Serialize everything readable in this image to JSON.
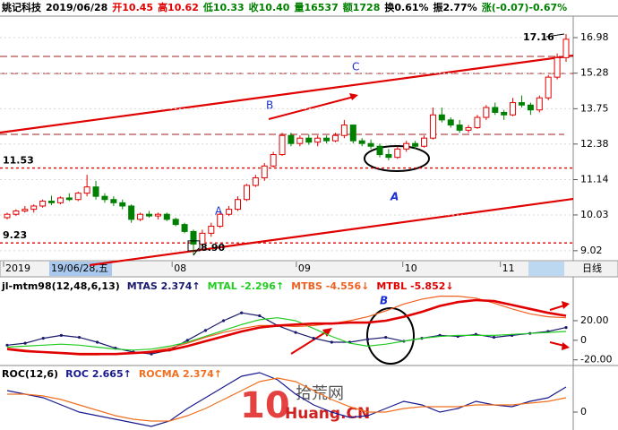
{
  "chart_data": [
    {
      "type": "candlestick",
      "header": {
        "name": "姚记科技",
        "date": "2019/06/28",
        "fields": [
          {
            "text": "开10.45",
            "color": "#e00000"
          },
          {
            "text": "高10.62",
            "color": "#e00000"
          },
          {
            "text": "低10.33",
            "color": "#008000"
          },
          {
            "text": "收10.40",
            "color": "#008000"
          },
          {
            "text": "量16537",
            "color": "#008000"
          },
          {
            "text": "额1728",
            "color": "#008000"
          },
          {
            "text": "换0.61%",
            "color": "#000000"
          },
          {
            "text": "振2.77%",
            "color": "#000000"
          },
          {
            "text": "涨(-0.07)-0.67%",
            "color": "#008000"
          }
        ]
      },
      "categories": [
        "2019",
        null,
        null,
        null,
        null,
        null,
        null,
        null,
        null,
        null,
        null,
        null,
        null,
        null,
        null,
        null,
        null,
        null,
        null,
        "08",
        null,
        null,
        null,
        null,
        null,
        null,
        null,
        null,
        null,
        null,
        null,
        null,
        null,
        "09",
        null,
        null,
        null,
        null,
        null,
        null,
        null,
        null,
        null,
        null,
        null,
        "10",
        null,
        null,
        null,
        null,
        null,
        null,
        null,
        null,
        null,
        null,
        "11",
        null,
        null,
        null,
        null,
        null,
        null,
        null
      ],
      "cursor_label": "19/06/28,五",
      "period": "日线",
      "ohlc": [
        [
          9.95,
          10.1,
          9.9,
          10.05
        ],
        [
          10.05,
          10.2,
          10.0,
          10.15
        ],
        [
          10.15,
          10.3,
          10.1,
          10.2
        ],
        [
          10.2,
          10.35,
          10.1,
          10.3
        ],
        [
          10.3,
          10.5,
          10.25,
          10.45
        ],
        [
          10.45,
          10.62,
          10.33,
          10.4
        ],
        [
          10.4,
          10.6,
          10.35,
          10.55
        ],
        [
          10.55,
          10.7,
          10.45,
          10.5
        ],
        [
          10.5,
          10.75,
          10.45,
          10.7
        ],
        [
          10.7,
          11.3,
          10.6,
          10.9
        ],
        [
          10.9,
          11.1,
          10.5,
          10.6
        ],
        [
          10.6,
          10.7,
          10.4,
          10.5
        ],
        [
          10.5,
          10.6,
          10.3,
          10.4
        ],
        [
          10.4,
          10.5,
          10.2,
          10.3
        ],
        [
          10.3,
          10.35,
          9.8,
          9.9
        ],
        [
          9.9,
          10.1,
          9.85,
          10.05
        ],
        [
          10.05,
          10.15,
          9.95,
          10.0
        ],
        [
          10.0,
          10.1,
          9.9,
          10.05
        ],
        [
          10.05,
          10.1,
          9.85,
          9.9
        ],
        [
          9.9,
          9.95,
          9.7,
          9.75
        ],
        [
          9.75,
          9.8,
          9.5,
          9.55
        ],
        [
          9.55,
          9.6,
          8.9,
          9.2
        ],
        [
          9.2,
          9.6,
          9.15,
          9.5
        ],
        [
          9.5,
          9.8,
          9.4,
          9.7
        ],
        [
          9.7,
          10.1,
          9.65,
          10.05
        ],
        [
          10.05,
          10.3,
          10.0,
          10.2
        ],
        [
          10.2,
          10.6,
          10.15,
          10.5
        ],
        [
          10.5,
          11.0,
          10.45,
          10.95
        ],
        [
          10.95,
          11.3,
          10.9,
          11.2
        ],
        [
          11.2,
          11.7,
          11.1,
          11.6
        ],
        [
          11.6,
          12.1,
          11.55,
          12.0
        ],
        [
          12.0,
          12.8,
          11.95,
          12.7
        ],
        [
          12.7,
          12.8,
          12.3,
          12.4
        ],
        [
          12.4,
          12.7,
          12.3,
          12.6
        ],
        [
          12.6,
          12.75,
          12.35,
          12.45
        ],
        [
          12.45,
          12.7,
          12.3,
          12.6
        ],
        [
          12.6,
          12.7,
          12.4,
          12.5
        ],
        [
          12.5,
          12.8,
          12.45,
          12.7
        ],
        [
          12.7,
          13.3,
          12.6,
          13.1
        ],
        [
          13.1,
          13.1,
          12.4,
          12.5
        ],
        [
          12.5,
          12.6,
          12.3,
          12.4
        ],
        [
          12.4,
          12.55,
          12.2,
          12.3
        ],
        [
          12.3,
          12.4,
          11.9,
          12.0
        ],
        [
          12.0,
          12.2,
          11.8,
          11.9
        ],
        [
          11.9,
          12.3,
          11.85,
          12.2
        ],
        [
          12.2,
          12.5,
          12.1,
          12.4
        ],
        [
          12.4,
          12.5,
          12.2,
          12.3
        ],
        [
          12.3,
          12.7,
          12.25,
          12.6
        ],
        [
          12.6,
          13.8,
          12.55,
          13.5
        ],
        [
          13.5,
          13.8,
          13.2,
          13.3
        ],
        [
          13.3,
          13.4,
          13.0,
          13.1
        ],
        [
          13.1,
          13.3,
          12.8,
          12.9
        ],
        [
          12.9,
          13.1,
          12.8,
          13.0
        ],
        [
          13.0,
          13.5,
          12.95,
          13.4
        ],
        [
          13.4,
          13.9,
          13.3,
          13.8
        ],
        [
          13.8,
          14.0,
          13.5,
          13.6
        ],
        [
          13.6,
          13.7,
          13.3,
          13.5
        ],
        [
          13.5,
          14.2,
          13.45,
          14.0
        ],
        [
          14.0,
          14.3,
          13.8,
          13.9
        ],
        [
          13.9,
          14.0,
          13.5,
          13.7
        ],
        [
          13.7,
          14.3,
          13.6,
          14.2
        ],
        [
          14.2,
          15.2,
          14.1,
          15.1
        ],
        [
          15.1,
          16.2,
          15.0,
          16.0
        ],
        [
          16.0,
          17.16,
          15.8,
          16.9
        ]
      ],
      "up_color": "#e00000",
      "down_color": "#008000",
      "log_scale": true,
      "ylim": [
        8.78,
        18.1
      ],
      "yticks": [
        16.98,
        15.28,
        13.75,
        12.38,
        11.14,
        10.03,
        9.02
      ],
      "levels": [
        11.53,
        9.23
      ],
      "level_color": "#e00000",
      "max_label": 17.16,
      "min_label": {
        "value": 8.9,
        "label": "8.90"
      },
      "annotations": [
        "A",
        "B",
        "C",
        "A"
      ]
    },
    {
      "type": "line",
      "title": "jl-mtm98(12,48,6,13)",
      "series": [
        {
          "name": "MTAS 2.374↑",
          "color": "#1a1a6e",
          "markers": true,
          "values": [
            -5,
            -3,
            2,
            5,
            3,
            -2,
            -8,
            -12,
            -14,
            -10,
            0,
            10,
            20,
            28,
            25,
            15,
            8,
            2,
            -2,
            -2,
            1,
            3,
            -1,
            2,
            5,
            4,
            6,
            3,
            5,
            7,
            9,
            13
          ]
        },
        {
          "name": "MTAL -2.296↑",
          "color": "#22cc22",
          "values": [
            -7,
            -6,
            -5,
            -4,
            -5,
            -7,
            -9,
            -10,
            -9,
            -6,
            -2,
            4,
            10,
            16,
            21,
            23,
            20,
            12,
            4,
            -3,
            -6,
            -4,
            -1,
            2,
            4,
            5,
            5,
            5,
            6,
            7,
            8,
            9
          ]
        },
        {
          "name": "MTBS -4.556↓",
          "color": "#f06020",
          "values": [
            -8,
            -10,
            -12,
            -13,
            -15,
            -15,
            -14,
            -13,
            -11,
            -8,
            -3,
            3,
            8,
            12,
            15,
            15,
            14,
            15,
            17,
            20,
            24,
            30,
            37,
            42,
            45,
            45,
            43,
            38,
            32,
            27,
            24,
            23
          ]
        },
        {
          "name": "MTBL -5.852↓",
          "color": "#e00000",
          "values": [
            -9,
            -11,
            -12,
            -13,
            -14,
            -14,
            -14,
            -13,
            -12,
            -10,
            -6,
            -1,
            4,
            9,
            13,
            15,
            16,
            17,
            17,
            18,
            18,
            20,
            24,
            29,
            35,
            39,
            41,
            40,
            36,
            32,
            28,
            25
          ]
        }
      ],
      "ylim": [
        -23,
        62
      ],
      "yticks": [
        {
          "value": 20,
          "label": "20.00"
        },
        0,
        {
          "value": -20,
          "label": "-20.00"
        }
      ],
      "annotations": [
        "B"
      ]
    },
    {
      "type": "line",
      "title": "ROC(12,6)",
      "series": [
        {
          "name": "ROC 2.665↑",
          "color": "#1a1a8e",
          "values": [
            12,
            10,
            8,
            4,
            0,
            -2,
            -4,
            -6,
            -8,
            -5,
            2,
            8,
            14,
            20,
            22,
            18,
            10,
            4,
            0,
            -3,
            -2,
            2,
            6,
            4,
            0,
            2,
            6,
            4,
            3,
            6,
            8,
            14
          ]
        },
        {
          "name": "ROCMA 2.374↑",
          "color": "#f07020",
          "values": [
            10,
            10,
            9,
            7,
            4,
            1,
            -2,
            -4,
            -5,
            -5,
            -2,
            2,
            7,
            12,
            17,
            19,
            17,
            12,
            7,
            3,
            0,
            0,
            2,
            3,
            3,
            3,
            4,
            4,
            4,
            5,
            6,
            8
          ]
        }
      ],
      "ylim": [
        -9,
        25
      ],
      "yticks": [
        0
      ]
    }
  ],
  "watermark": {
    "logo": "10",
    "site": "拾荒网",
    "domain": "Huang.CN"
  }
}
